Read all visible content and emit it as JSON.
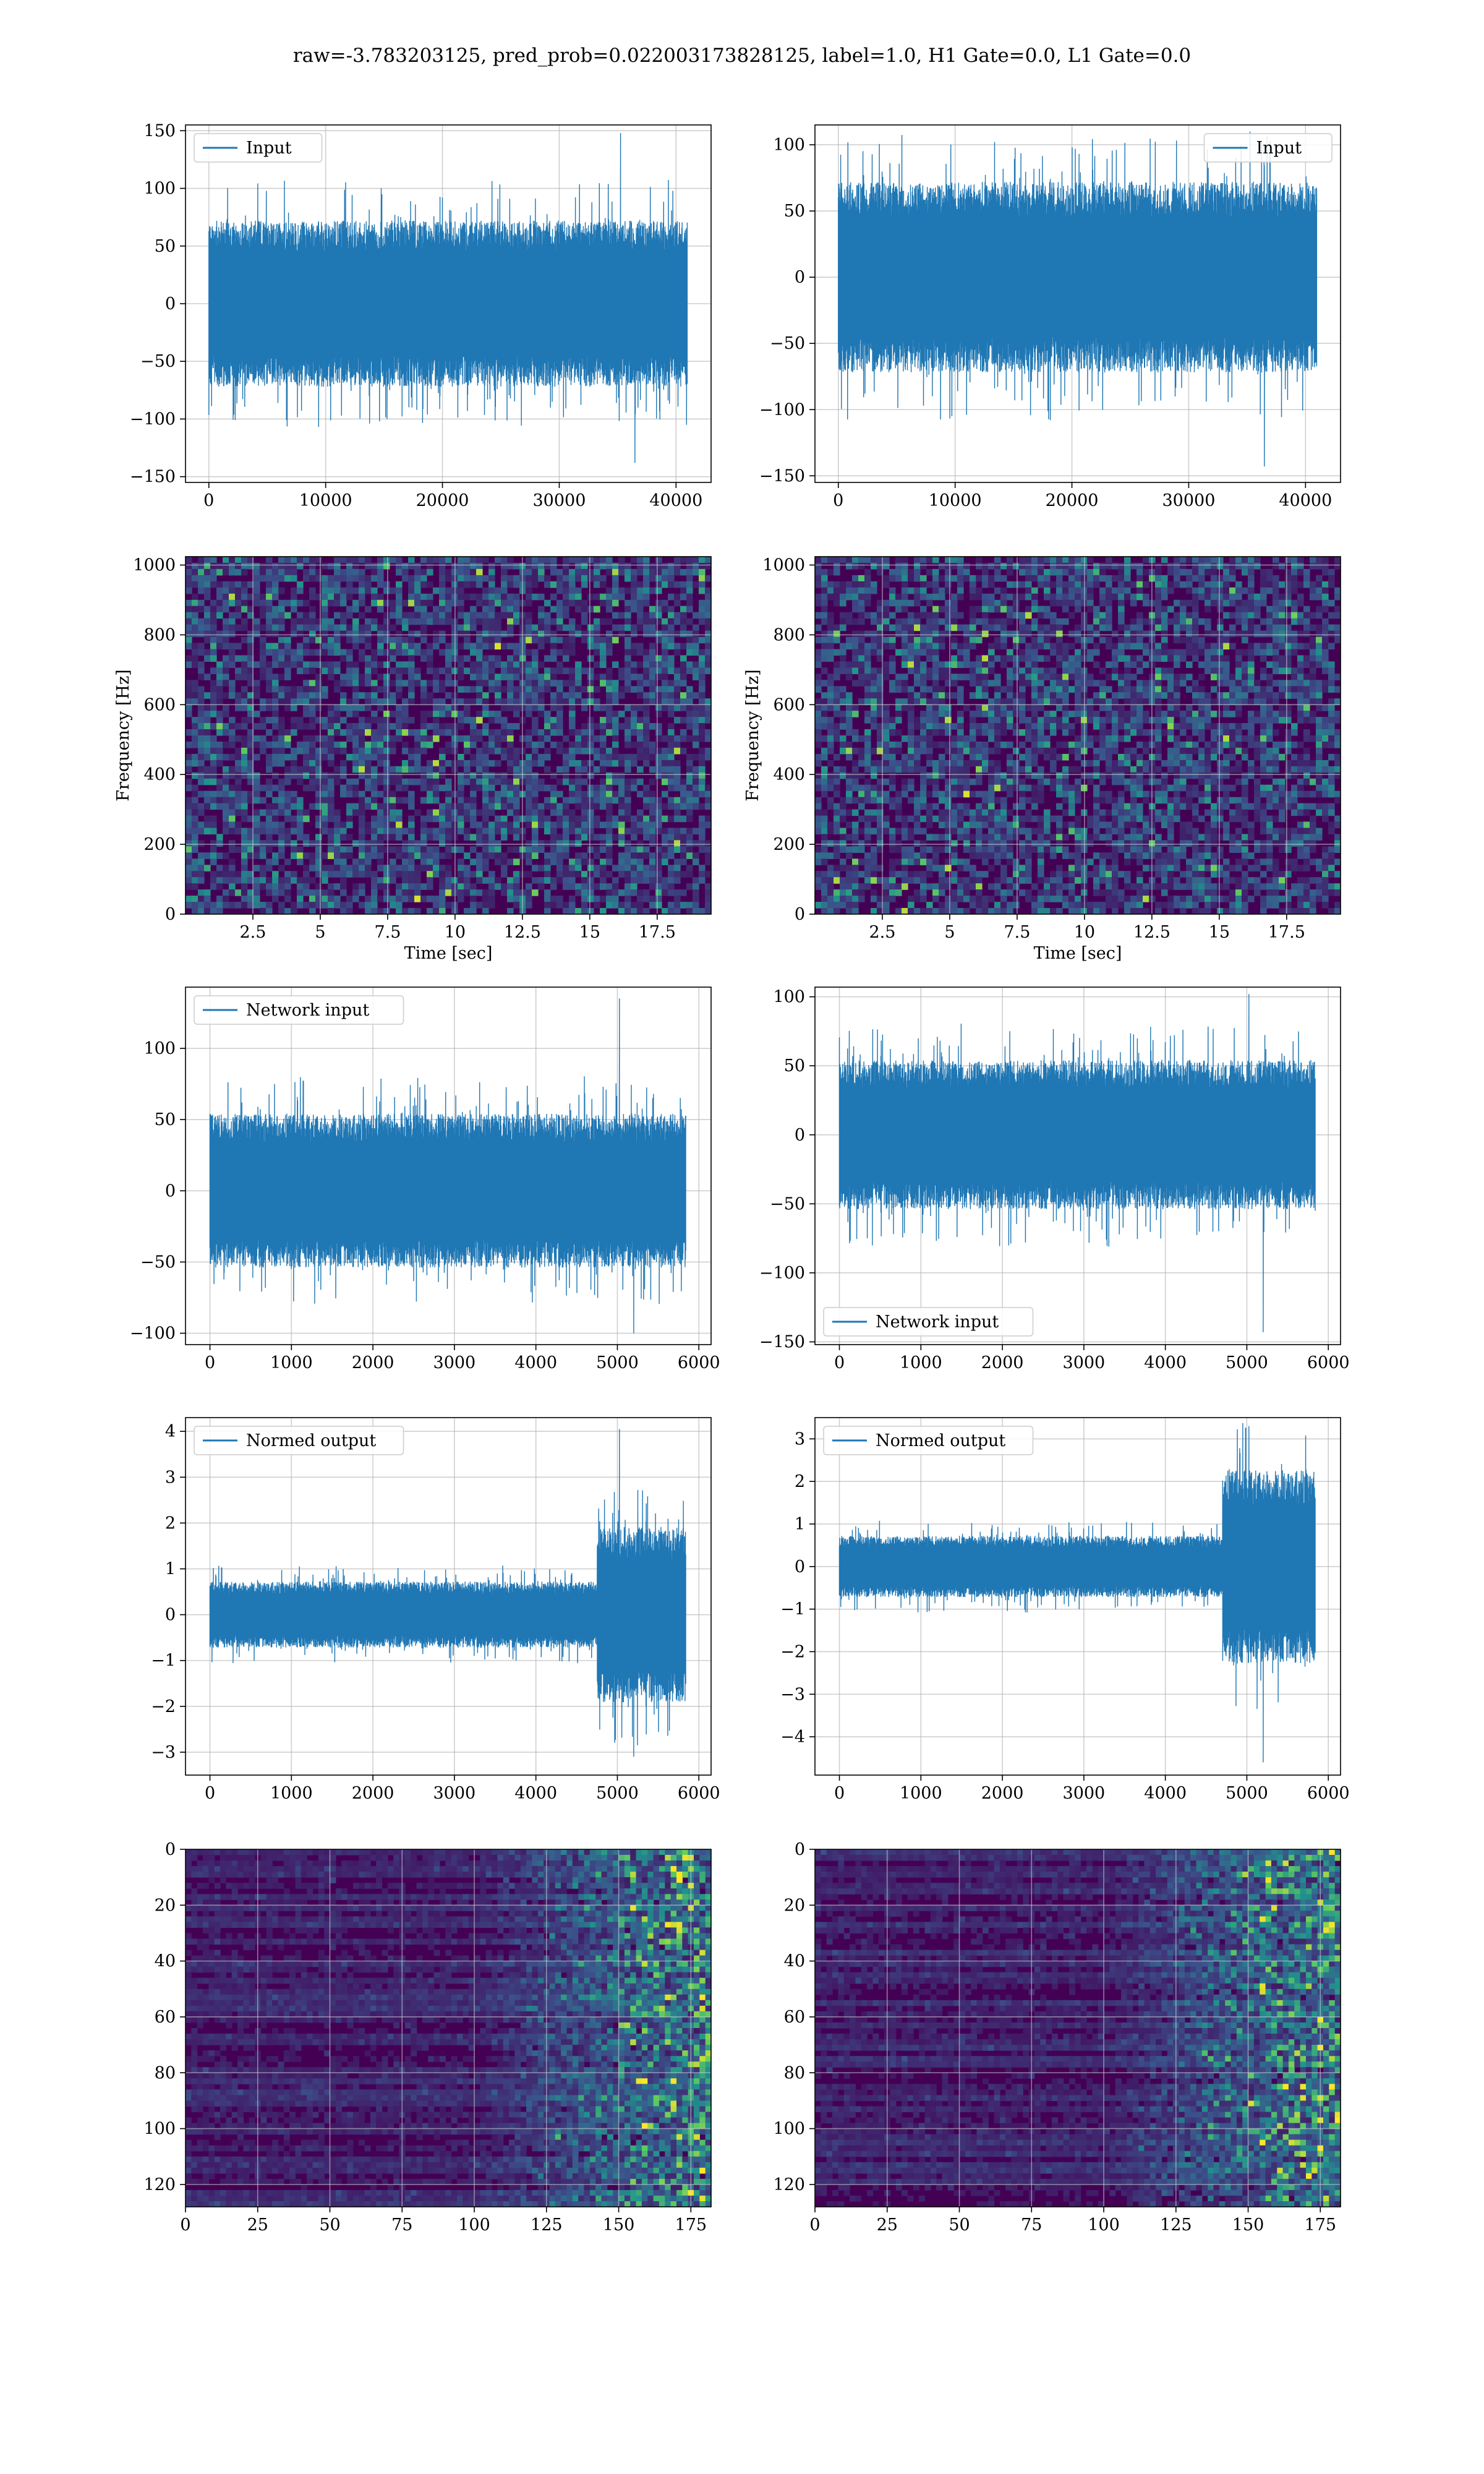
{
  "figure": {
    "title": "raw=-3.783203125, pred_prob=0.022003173828125, label=1.0, H1 Gate=0.0, L1 Gate=0.0"
  },
  "colors": {
    "series": "#1f77b4",
    "grid": "#b0b0b0",
    "viridis_low": "#440154",
    "viridis_mid": "#21918c",
    "viridis_high": "#fde725"
  },
  "chart_data": [
    {
      "id": "input-h1",
      "type": "line",
      "legend": [
        "Input"
      ],
      "legend_position": "top-left",
      "series": [
        {
          "name": "Input",
          "length": 40960,
          "envelope": 60,
          "spike_max": 148,
          "spike_min": -138
        }
      ],
      "xlim": [
        -2000,
        43000
      ],
      "ylim": [
        -155,
        155
      ],
      "xticks": [
        0,
        10000,
        20000,
        30000,
        40000
      ],
      "yticks": [
        -150,
        -100,
        -50,
        0,
        50,
        100,
        150
      ],
      "xlabel": "",
      "ylabel": "",
      "grid": true
    },
    {
      "id": "input-l1",
      "type": "line",
      "legend": [
        "Input"
      ],
      "legend_position": "top-right",
      "series": [
        {
          "name": "Input",
          "length": 40960,
          "envelope": 60,
          "spike_max": 110,
          "spike_min": -143
        }
      ],
      "xlim": [
        -2000,
        43000
      ],
      "ylim": [
        -155,
        115
      ],
      "xticks": [
        0,
        10000,
        20000,
        30000,
        40000
      ],
      "yticks": [
        -150,
        -100,
        -50,
        0,
        50,
        100
      ],
      "xlabel": "",
      "ylabel": "",
      "grid": true
    },
    {
      "id": "spectrogram-h1",
      "type": "heatmap",
      "colormap": "viridis",
      "xlim": [
        0,
        19.5
      ],
      "ylim": [
        0,
        1024
      ],
      "xticks": [
        2.5,
        5.0,
        7.5,
        10.0,
        12.5,
        15.0,
        17.5
      ],
      "yticks": [
        0,
        200,
        400,
        600,
        800,
        1000
      ],
      "xlabel": "Time [sec]",
      "ylabel": "Frequency [Hz]",
      "grid": true
    },
    {
      "id": "spectrogram-l1",
      "type": "heatmap",
      "colormap": "viridis",
      "xlim": [
        0,
        19.5
      ],
      "ylim": [
        0,
        1024
      ],
      "xticks": [
        2.5,
        5.0,
        7.5,
        10.0,
        12.5,
        15.0,
        17.5
      ],
      "yticks": [
        0,
        200,
        400,
        600,
        800,
        1000
      ],
      "xlabel": "Time [sec]",
      "ylabel": "Frequency [Hz]",
      "grid": true
    },
    {
      "id": "network-input-h1",
      "type": "line",
      "legend": [
        "Network input"
      ],
      "legend_position": "top-left",
      "series": [
        {
          "name": "Network input",
          "length": 5840,
          "envelope": 45,
          "spike_max": 135,
          "spike_min": -100
        }
      ],
      "xlim": [
        -300,
        6150
      ],
      "ylim": [
        -108,
        143
      ],
      "xticks": [
        0,
        1000,
        2000,
        3000,
        4000,
        5000,
        6000
      ],
      "yticks": [
        -100,
        -50,
        0,
        50,
        100
      ],
      "xlabel": "",
      "ylabel": "",
      "grid": true
    },
    {
      "id": "network-input-l1",
      "type": "line",
      "legend": [
        "Network input"
      ],
      "legend_position": "bottom-left",
      "series": [
        {
          "name": "Network input",
          "length": 5840,
          "envelope": 45,
          "spike_max": 102,
          "spike_min": -143
        }
      ],
      "xlim": [
        -300,
        6150
      ],
      "ylim": [
        -152,
        107
      ],
      "xticks": [
        0,
        1000,
        2000,
        3000,
        4000,
        5000,
        6000
      ],
      "yticks": [
        -150,
        -100,
        -50,
        0,
        50,
        100
      ],
      "xlabel": "",
      "ylabel": "",
      "grid": true
    },
    {
      "id": "normed-output-h1",
      "type": "line",
      "legend": [
        "Normed output"
      ],
      "legend_position": "top-left",
      "series": [
        {
          "name": "Normed output",
          "length": 5840,
          "envelope": 0.6,
          "burst_start": 4750,
          "burst_envelope": 1.6,
          "spike_max": 4.05,
          "spike_min": -3.1
        }
      ],
      "xlim": [
        -300,
        6150
      ],
      "ylim": [
        -3.5,
        4.3
      ],
      "xticks": [
        0,
        1000,
        2000,
        3000,
        4000,
        5000,
        6000
      ],
      "yticks": [
        -3,
        -2,
        -1,
        0,
        1,
        2,
        3,
        4
      ],
      "xlabel": "",
      "ylabel": "",
      "grid": true
    },
    {
      "id": "normed-output-l1",
      "type": "line",
      "legend": [
        "Normed output"
      ],
      "legend_position": "top-left",
      "series": [
        {
          "name": "Normed output",
          "length": 5840,
          "envelope": 0.6,
          "burst_start": 4700,
          "burst_envelope": 1.9,
          "spike_max": 3.3,
          "spike_min": -4.6
        }
      ],
      "xlim": [
        -300,
        6150
      ],
      "ylim": [
        -4.9,
        3.5
      ],
      "xticks": [
        0,
        1000,
        2000,
        3000,
        4000,
        5000,
        6000
      ],
      "yticks": [
        -4,
        -3,
        -2,
        -1,
        0,
        1,
        2,
        3
      ],
      "xlabel": "",
      "ylabel": "",
      "grid": true
    },
    {
      "id": "feature-map-h1",
      "type": "heatmap",
      "colormap": "viridis",
      "xlim": [
        0,
        182
      ],
      "ylim": [
        128,
        0
      ],
      "xticks": [
        0,
        25,
        50,
        75,
        100,
        125,
        150,
        175
      ],
      "yticks": [
        0,
        20,
        40,
        60,
        80,
        100,
        120
      ],
      "xlabel": "",
      "ylabel": "",
      "grid": true
    },
    {
      "id": "feature-map-l1",
      "type": "heatmap",
      "colormap": "viridis",
      "xlim": [
        0,
        182
      ],
      "ylim": [
        128,
        0
      ],
      "xticks": [
        0,
        25,
        50,
        75,
        100,
        125,
        150,
        175
      ],
      "yticks": [
        0,
        20,
        40,
        60,
        80,
        100,
        120
      ],
      "xlabel": "",
      "ylabel": "",
      "grid": true
    }
  ]
}
